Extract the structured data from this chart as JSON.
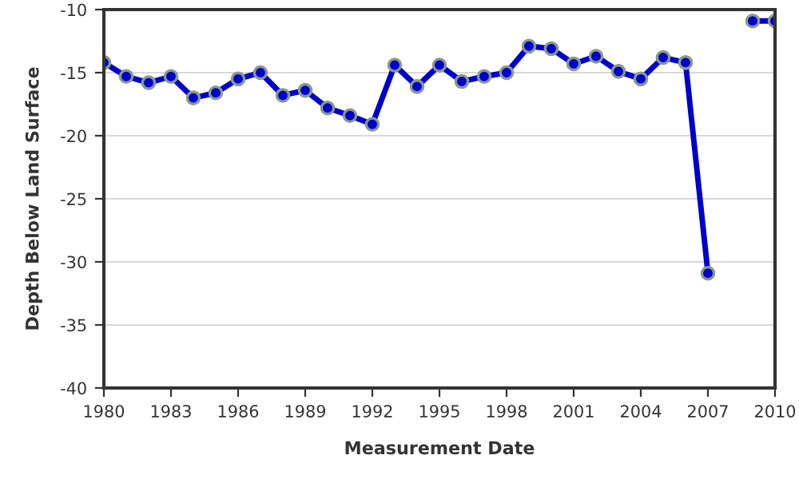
{
  "chart_data": {
    "type": "line",
    "xlabel": "Measurement Date",
    "ylabel": "Depth Below Land Surface",
    "x": [
      1980,
      1981,
      1982,
      1983,
      1984,
      1985,
      1986,
      1987,
      1988,
      1989,
      1990,
      1991,
      1992,
      1993,
      1994,
      1995,
      1996,
      1997,
      1998,
      1999,
      2000,
      2001,
      2002,
      2003,
      2004,
      2005,
      2006,
      2007,
      2008,
      2009,
      2010
    ],
    "series": [
      {
        "color": "#0000cc",
        "values": [
          -14.2,
          -15.3,
          -15.8,
          -15.3,
          -17.0,
          -16.6,
          -15.5,
          -15.0,
          -16.8,
          -16.4,
          -17.8,
          -18.4,
          -19.1,
          -14.4,
          -16.1,
          -14.4,
          -15.7,
          -15.3,
          -15.0,
          -12.9,
          -13.1,
          -14.3,
          -13.7,
          -14.9,
          -15.5,
          -13.8,
          -14.2,
          -30.9,
          null,
          -10.9,
          -10.9
        ]
      }
    ],
    "xlim": [
      1980,
      2010
    ],
    "xticks": [
      1980,
      1983,
      1986,
      1989,
      1992,
      1995,
      1998,
      2001,
      2004,
      2007,
      2010
    ],
    "ylim": [
      -40,
      -10
    ],
    "yticks": [
      -40,
      -35,
      -30,
      -25,
      -20,
      -15,
      -10
    ],
    "grid": "y",
    "marker": "circle",
    "line_style": "solid"
  }
}
